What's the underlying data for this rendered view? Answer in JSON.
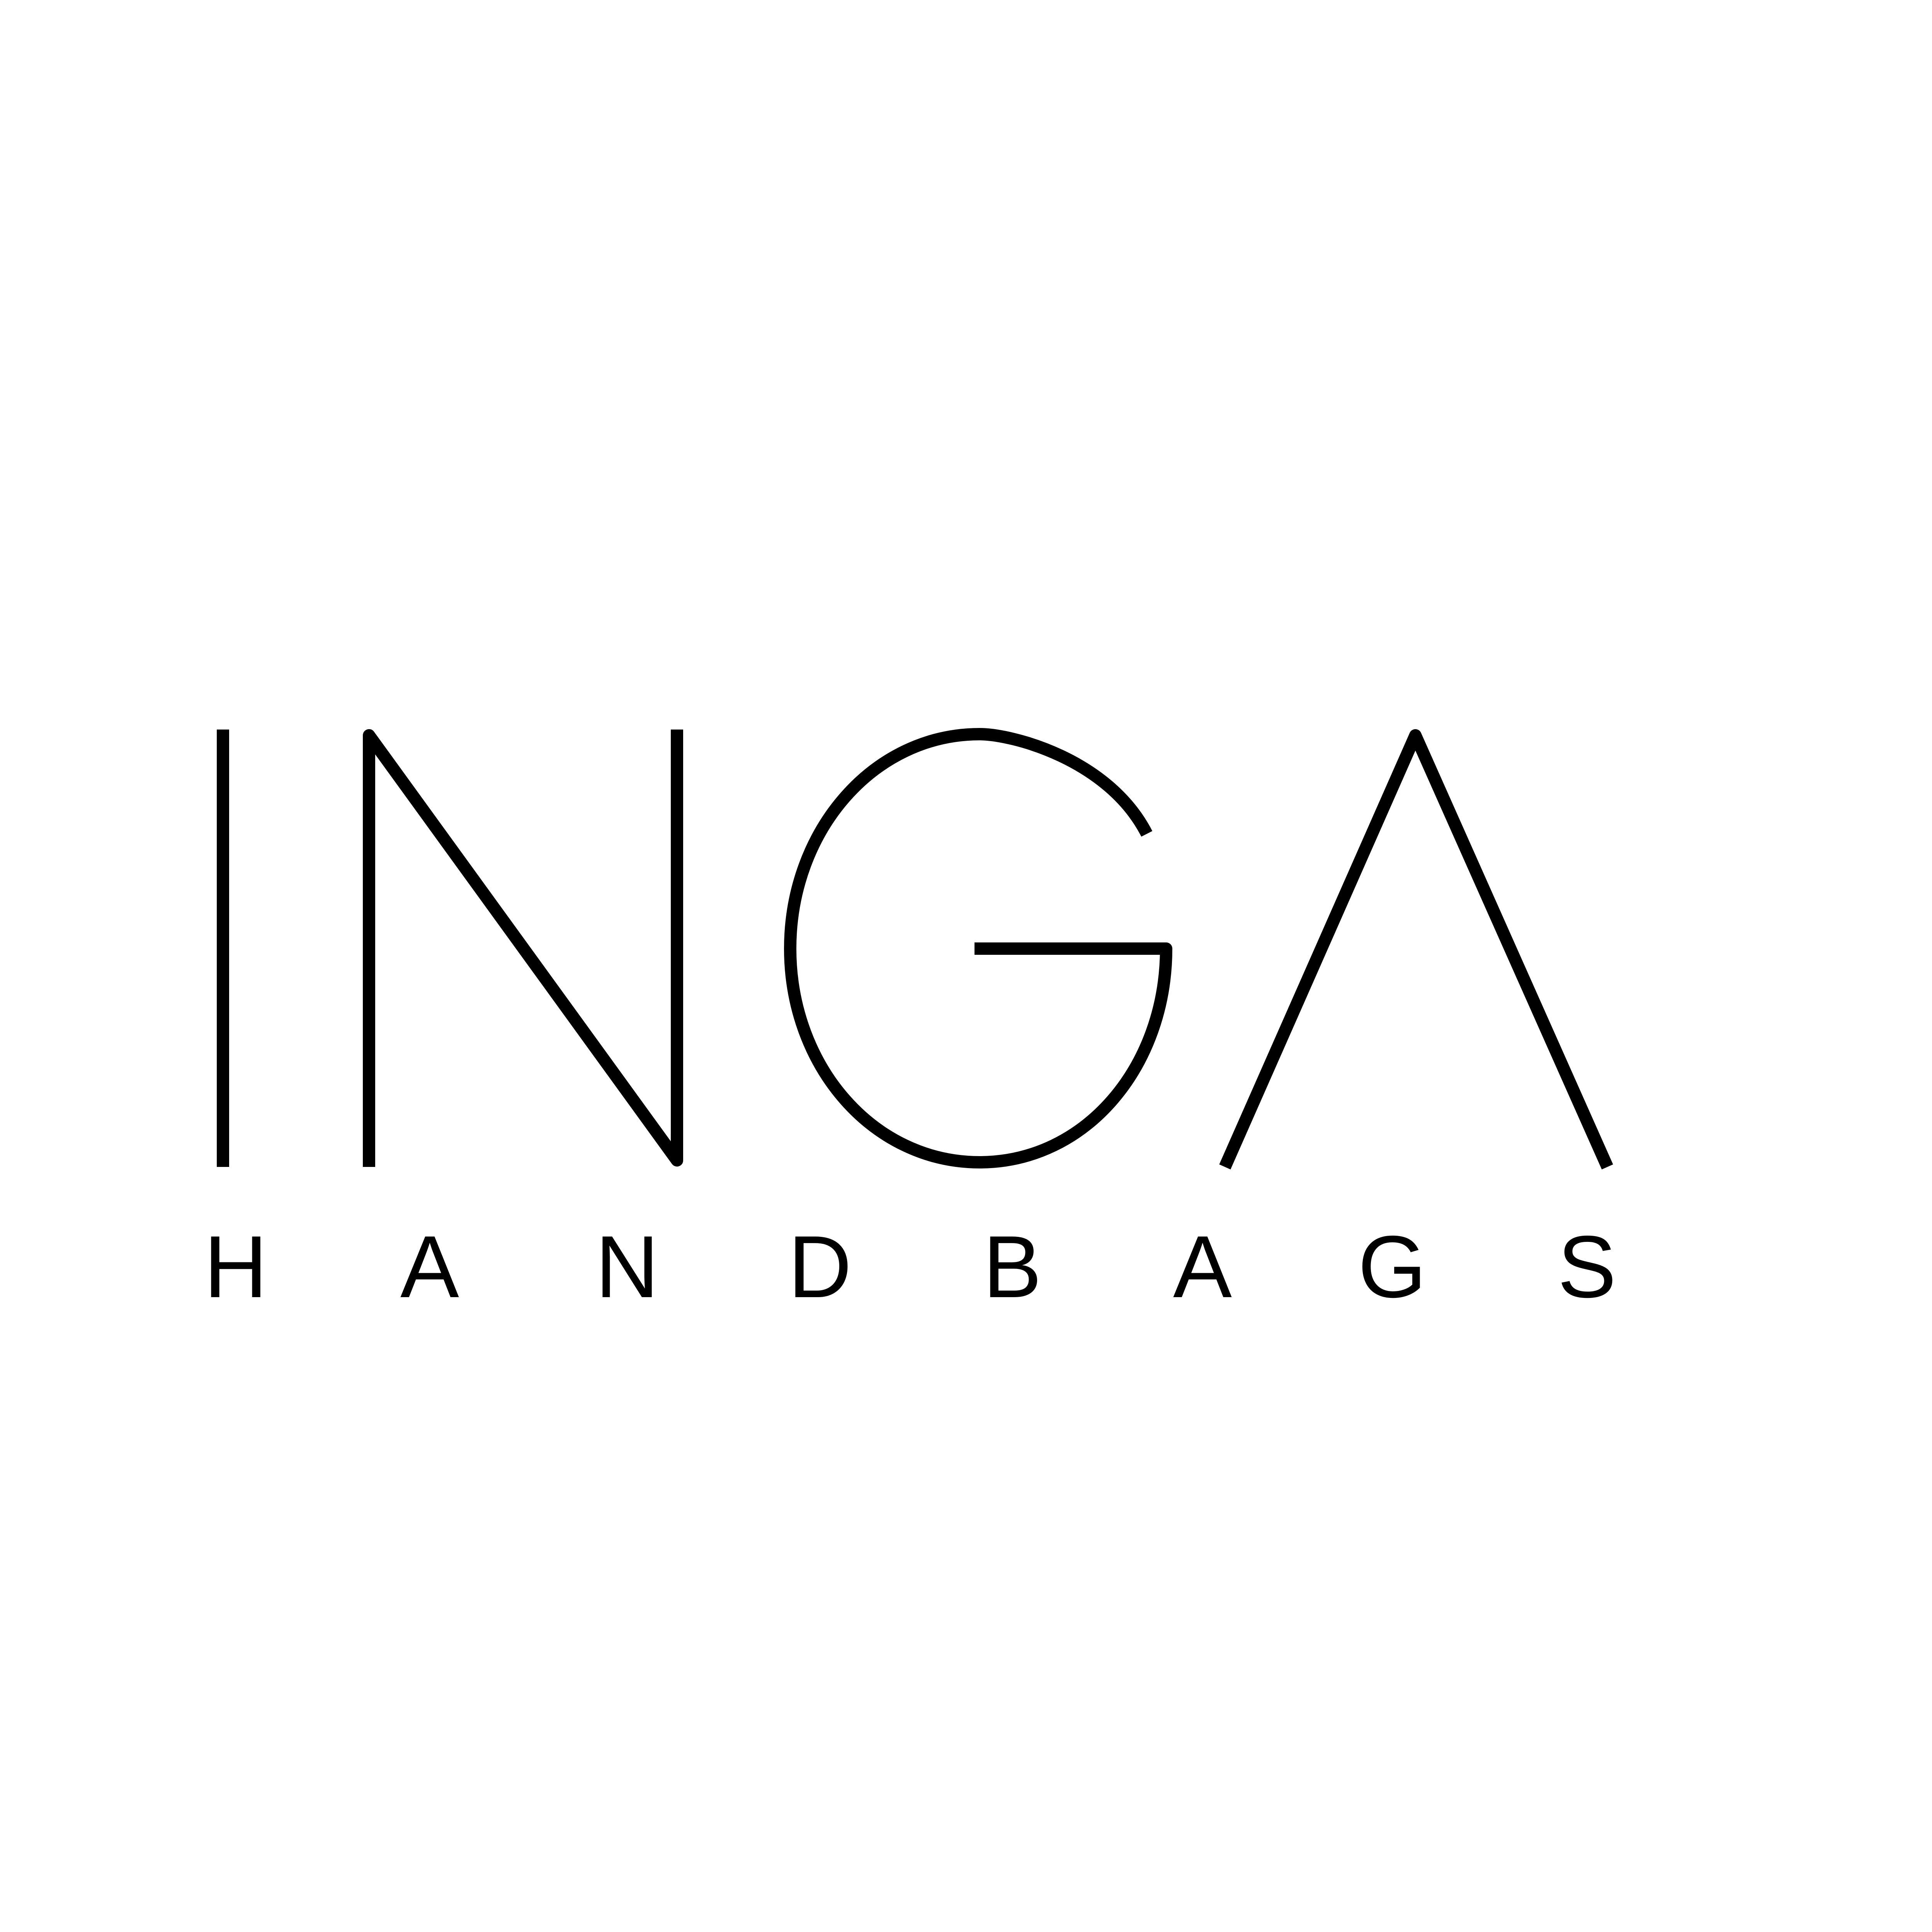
{
  "logo": {
    "wordmark": "INGA",
    "tagline": "HANDBAGS",
    "tagline_letters": [
      "H",
      "A",
      "N",
      "D",
      "B",
      "A",
      "G",
      "S"
    ],
    "ink_color": "#000000",
    "background_color": "#ffffff"
  }
}
